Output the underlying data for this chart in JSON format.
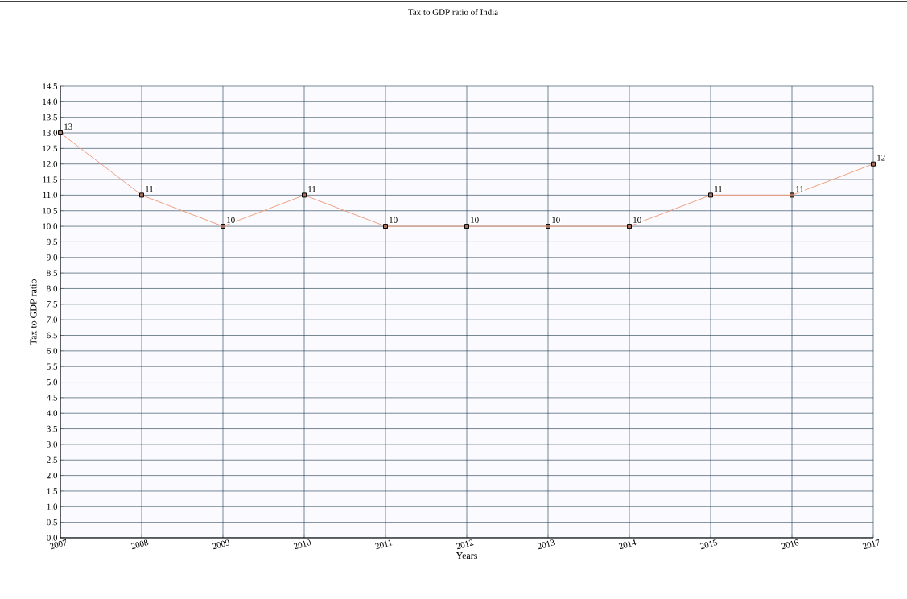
{
  "chart_data": {
    "type": "line",
    "title": "Tax to GDP ratio of India",
    "xlabel": "Years",
    "ylabel": "Tax to GDP ratio",
    "x": [
      2007,
      2008,
      2009,
      2010,
      2011,
      2012,
      2013,
      2014,
      2015,
      2016,
      2017
    ],
    "values": [
      13,
      11,
      10,
      11,
      10,
      10,
      10,
      10,
      11,
      11,
      12
    ],
    "color": "#f0a080",
    "marker": "square",
    "data_labels": true,
    "grid": true,
    "xlim": [
      2007,
      2017
    ],
    "xticks": [
      2007,
      2008,
      2009,
      2010,
      2011,
      2012,
      2013,
      2014,
      2015,
      2016,
      2017
    ],
    "ylim": [
      0,
      14.5
    ],
    "yticks": [
      {
        "value": 0,
        "label": "0.0"
      },
      0.5,
      {
        "value": 1,
        "label": "1.0"
      },
      1.5,
      {
        "value": 2,
        "label": "2.0"
      },
      2.5,
      {
        "value": 3,
        "label": "3.0"
      },
      3.5,
      {
        "value": 4,
        "label": "4.0"
      },
      4.5,
      {
        "value": 5,
        "label": "5.0"
      },
      5.5,
      {
        "value": 6,
        "label": "6.0"
      },
      6.5,
      {
        "value": 7,
        "label": "7.0"
      },
      7.5,
      {
        "value": 8,
        "label": "8.0"
      },
      8.5,
      {
        "value": 9,
        "label": "9.0"
      },
      9.5,
      {
        "value": 10,
        "label": "10.0"
      },
      10.5,
      {
        "value": 11,
        "label": "11.0"
      },
      11.5,
      {
        "value": 12,
        "label": "12.0"
      },
      12.5,
      {
        "value": 13,
        "label": "13.0"
      },
      13.5,
      {
        "value": 14,
        "label": "14.0"
      },
      14.5
    ]
  }
}
